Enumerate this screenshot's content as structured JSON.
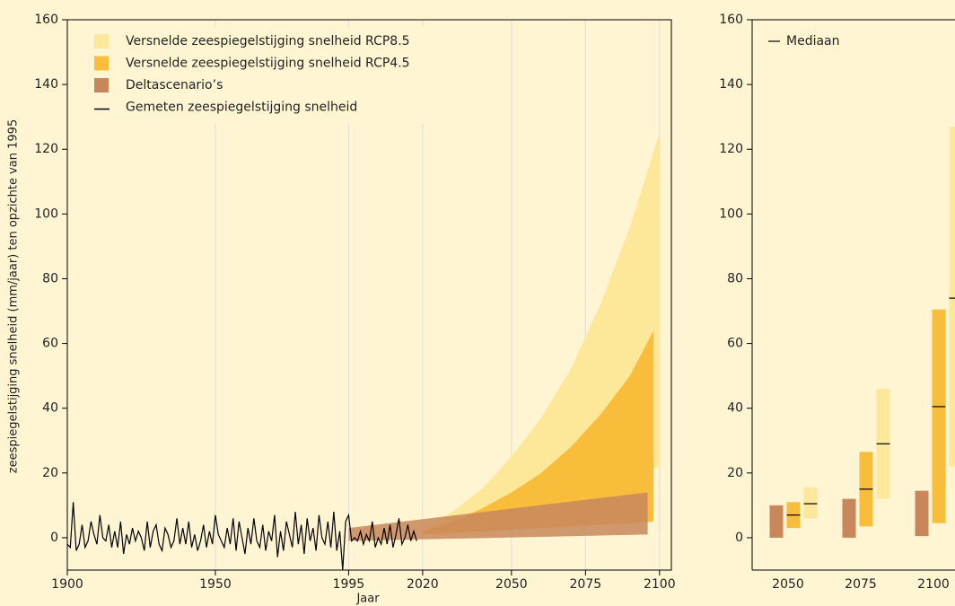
{
  "chart_data": [
    {
      "type": "area",
      "y_label": "zeespiegelstijging snelheid (mm/jaar) ten opzichte van 1995",
      "x_label": "Jaar",
      "xlim": [
        1900,
        2104
      ],
      "ylim": [
        -10,
        160
      ],
      "xticks": [
        1900,
        1950,
        1995,
        2020,
        2050,
        2075,
        2100
      ],
      "yticks": [
        0,
        20,
        40,
        60,
        80,
        100,
        120,
        140,
        160
      ],
      "grid": "x",
      "legend": "upper-left",
      "series": [
        {
          "name": "Versnelde zeespiegelstijging snelheid RCP8.5",
          "color": "#fde89a",
          "x": [
            2020,
            2030,
            2040,
            2050,
            2060,
            2070,
            2080,
            2090,
            2100
          ],
          "lower": [
            1,
            2,
            4,
            6,
            8,
            11,
            14,
            18,
            22
          ],
          "upper": [
            3,
            8,
            15,
            25,
            37,
            52,
            72,
            96,
            125
          ]
        },
        {
          "name": "Versnelde zeespiegelstijging snelheid RCP4.5",
          "color": "#f9bd3c",
          "x": [
            2020,
            2030,
            2040,
            2050,
            2060,
            2070,
            2080,
            2090,
            2098
          ],
          "lower": [
            1,
            1.5,
            2,
            2.5,
            3,
            3.5,
            4,
            4.5,
            5
          ],
          "upper": [
            2,
            5,
            9,
            14,
            20,
            28,
            38,
            50,
            64
          ]
        },
        {
          "name": "Deltascenario’s",
          "color": "#c8875a",
          "x": [
            1995,
            2096
          ],
          "lower": [
            -1,
            1
          ],
          "upper": [
            3,
            14
          ]
        },
        {
          "name": "Gemeten zeespiegelstijging snelheid",
          "color": "#000000",
          "x": [
            1900,
            1901,
            1902,
            1903,
            1904,
            1905,
            1906,
            1907,
            1908,
            1909,
            1910,
            1911,
            1912,
            1913,
            1914,
            1915,
            1916,
            1917,
            1918,
            1919,
            1920,
            1921,
            1922,
            1923,
            1924,
            1925,
            1926,
            1927,
            1928,
            1929,
            1930,
            1931,
            1932,
            1933,
            1934,
            1935,
            1936,
            1937,
            1938,
            1939,
            1940,
            1941,
            1942,
            1943,
            1944,
            1945,
            1946,
            1947,
            1948,
            1949,
            1950,
            1951,
            1952,
            1953,
            1954,
            1955,
            1956,
            1957,
            1958,
            1959,
            1960,
            1961,
            1962,
            1963,
            1964,
            1965,
            1966,
            1967,
            1968,
            1969,
            1970,
            1971,
            1972,
            1973,
            1974,
            1975,
            1976,
            1977,
            1978,
            1979,
            1980,
            1981,
            1982,
            1983,
            1984,
            1985,
            1986,
            1987,
            1988,
            1989,
            1990,
            1991,
            1992,
            1993,
            1994,
            1995,
            1996,
            1997,
            1998,
            1999,
            2000,
            2001,
            2002,
            2003,
            2004,
            2005,
            2006,
            2007,
            2008,
            2009,
            2010,
            2011,
            2012,
            2013,
            2014,
            2015,
            2016,
            2017,
            2018
          ],
          "values": [
            -2,
            -3,
            11,
            -4,
            -2,
            4,
            -3,
            -1,
            5,
            1,
            -2,
            7,
            0,
            -1,
            4,
            -3,
            2,
            -3,
            5,
            -5,
            1,
            -2,
            3,
            -1,
            2,
            0,
            -4,
            5,
            -3,
            2,
            4,
            -2,
            -4,
            3,
            1,
            -3,
            -1,
            6,
            -2,
            3,
            -2,
            5,
            -3,
            1,
            -4,
            -1,
            4,
            -3,
            2,
            -2,
            7,
            1,
            -1,
            -3,
            3,
            -2,
            6,
            -4,
            5,
            0,
            -5,
            3,
            -2,
            6,
            -1,
            -3,
            4,
            -4,
            2,
            -1,
            7,
            -6,
            2,
            -4,
            5,
            1,
            -3,
            8,
            -2,
            4,
            -5,
            6,
            -1,
            3,
            -4,
            7,
            0,
            -2,
            5,
            -3,
            8,
            -4,
            2,
            -10,
            5,
            7,
            -1,
            0,
            -1,
            2,
            -2,
            1,
            -1,
            5,
            -3,
            0,
            -2,
            3,
            -2,
            4,
            -3,
            1,
            6,
            -2,
            0,
            4,
            -1,
            2,
            -1
          ]
        }
      ]
    },
    {
      "type": "range_bar",
      "categories": [
        "2050",
        "2075",
        "2100"
      ],
      "ylim": [
        -10,
        160
      ],
      "yticks": [
        0,
        20,
        40,
        60,
        80,
        100,
        120,
        140,
        160
      ],
      "median_label": "Mediaan",
      "median_color": "#000000",
      "series": [
        {
          "color": "#c8875a",
          "low": [
            0,
            0,
            0.5
          ],
          "high": [
            10,
            12,
            14.5
          ],
          "median": [
            null,
            null,
            null
          ]
        },
        {
          "color": "#f9bd3c",
          "low": [
            3,
            3.5,
            4.5
          ],
          "high": [
            11,
            26.5,
            70.5
          ],
          "median": [
            7,
            15,
            40.5
          ]
        },
        {
          "color": "#fde89a",
          "low": [
            6,
            12,
            22
          ],
          "high": [
            15.5,
            46,
            127
          ],
          "median": [
            10.5,
            29,
            74
          ]
        }
      ]
    }
  ]
}
